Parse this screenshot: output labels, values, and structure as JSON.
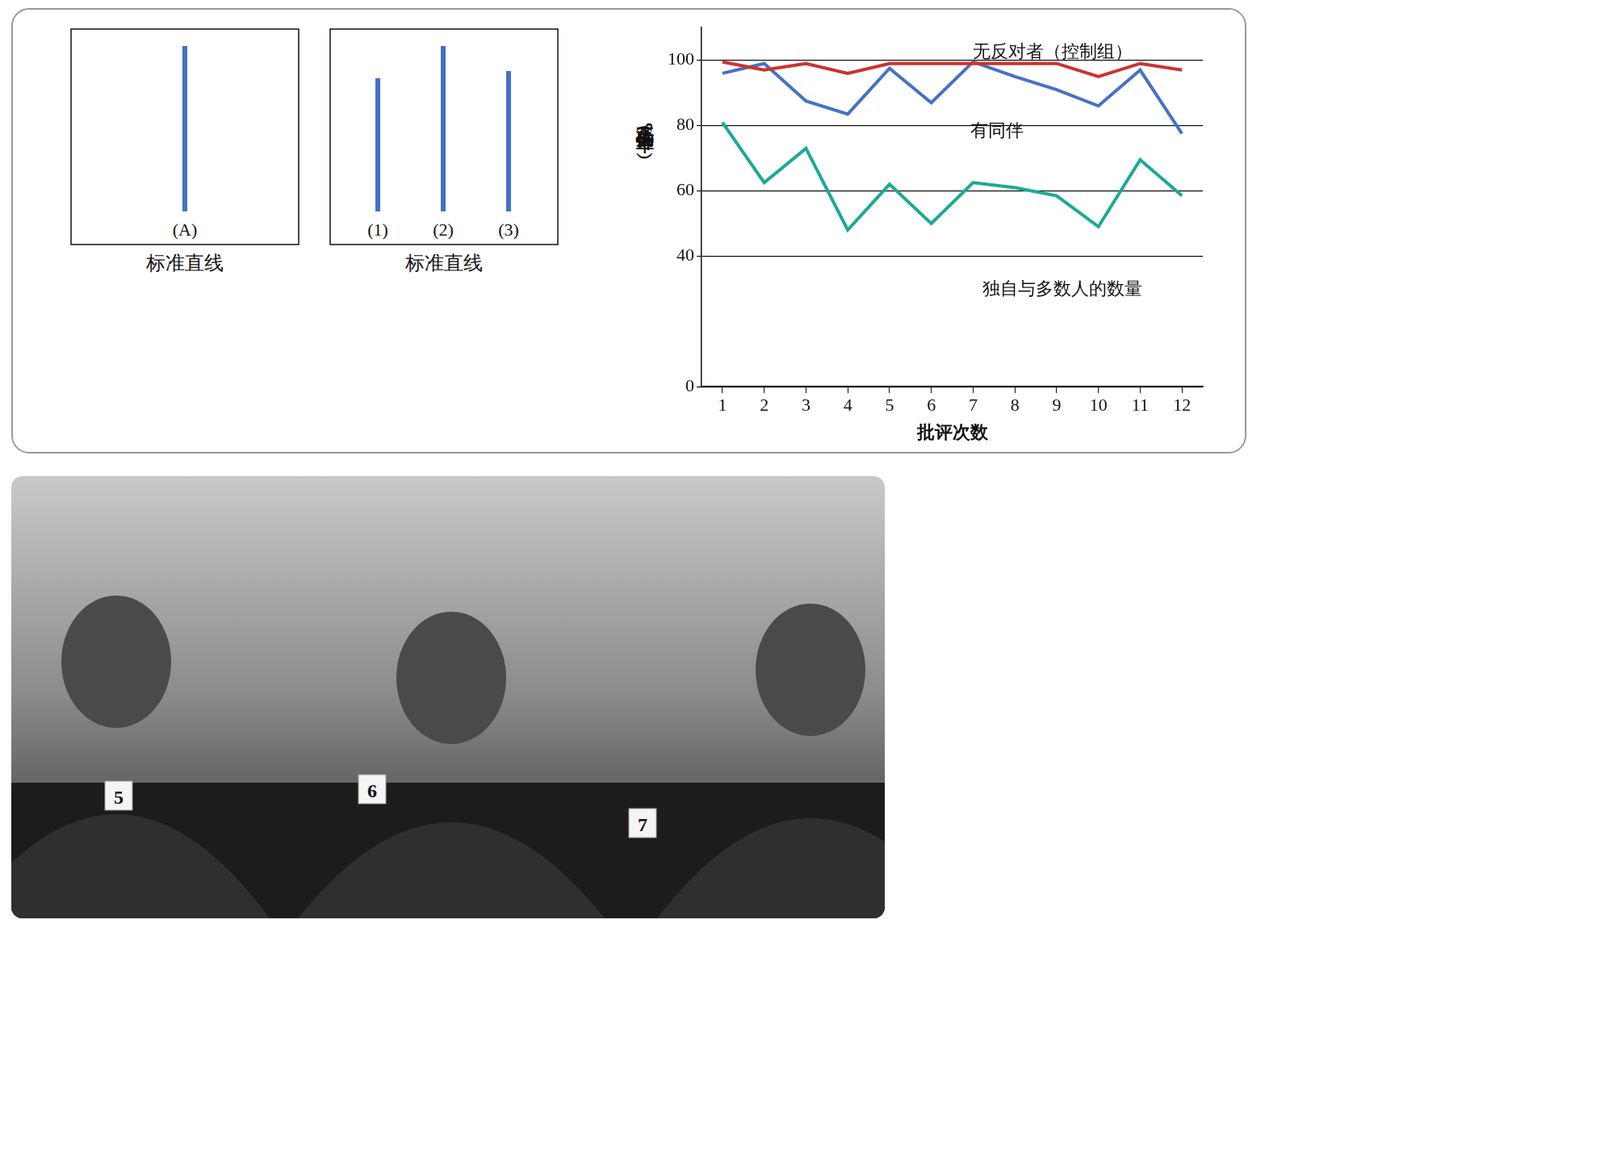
{
  "chart_data": {
    "type": "line",
    "x_label": "批评次数",
    "y_label": "正确估计率（%）",
    "categories": [
      "1",
      "2",
      "3",
      "4",
      "5",
      "6",
      "7",
      "8",
      "9",
      "10",
      "11",
      "12"
    ],
    "ylim": [
      0,
      110
    ],
    "yticks": [
      0,
      40,
      60,
      80,
      100
    ],
    "grid": true,
    "legend": "none",
    "series": [
      {
        "name": "无反对者（控制组）",
        "color": "#d0312d",
        "values": [
          99.5,
          97,
          99,
          96,
          99,
          99,
          99,
          99,
          99,
          95,
          99,
          97
        ]
      },
      {
        "name": "有同伴",
        "color": "#4472c4",
        "values": [
          96,
          99,
          87.5,
          83.5,
          97.5,
          87,
          99.5,
          95,
          91,
          86,
          97,
          77.5
        ]
      },
      {
        "name": "独自与多数人的数量",
        "color": "#1aaa96",
        "values": [
          81,
          62.5,
          73,
          48,
          62,
          50,
          62.5,
          61,
          58.5,
          49,
          69.5,
          58.5
        ]
      }
    ]
  },
  "diagram": {
    "panels": [
      {
        "lines": [
          "(A)"
        ],
        "caption": "标准直线"
      },
      {
        "lines": [
          "(1)",
          "(2)",
          "(3)"
        ],
        "caption": "标准直线"
      }
    ]
  },
  "photo": {
    "cards": [
      "5",
      "6",
      "7"
    ]
  }
}
